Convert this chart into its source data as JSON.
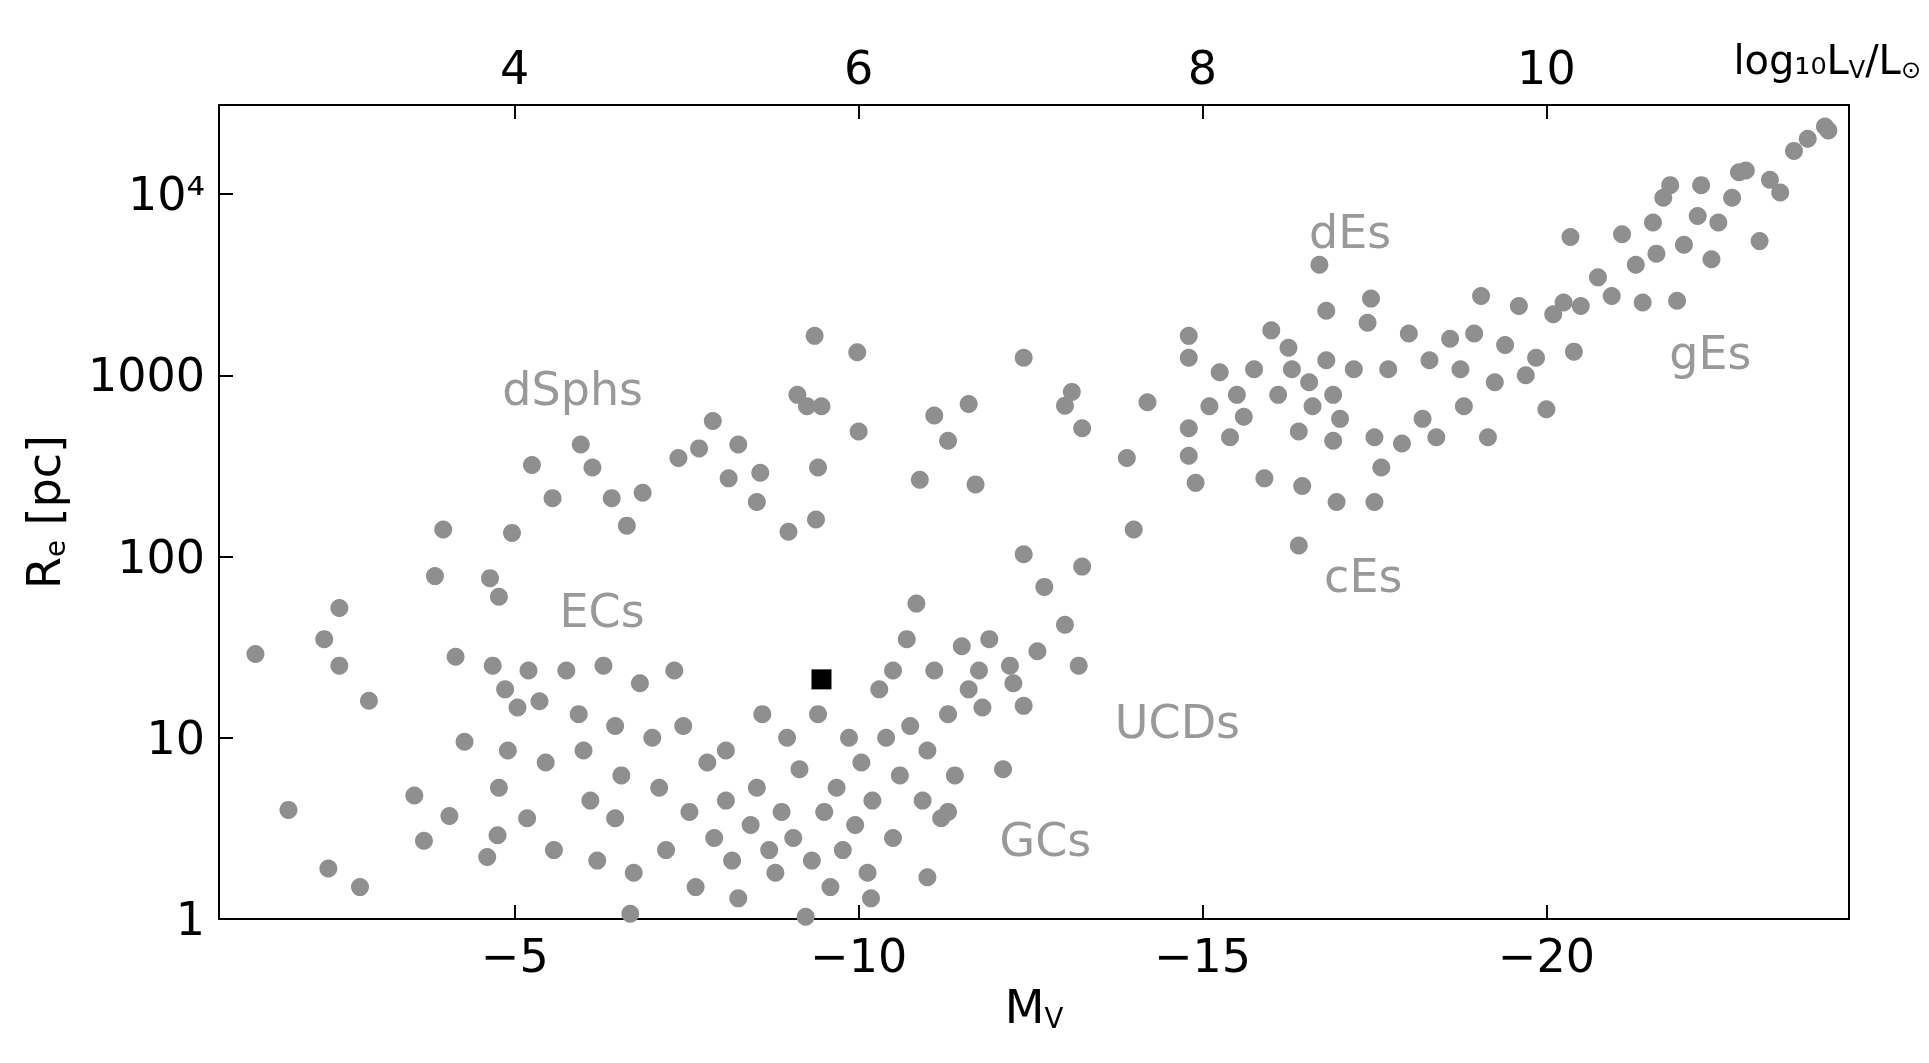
{
  "chart_data": {
    "type": "scatter",
    "xlabel": "M$_{V}$",
    "ylabel": "R$_{e}$ [pc]",
    "x2label": "log₁₀L$_{V}$/L$_{⊙}$",
    "xlim": [
      -0.7,
      -24.4
    ],
    "xticks": [
      -5,
      -10,
      -15,
      -20
    ],
    "x2lim": [
      2.28,
      11.76
    ],
    "x2ticks": [
      4,
      6,
      8,
      10
    ],
    "ylim": [
      1,
      31000
    ],
    "yticks": [
      1,
      10,
      100,
      1000,
      {
        "value": 10000,
        "label": "10⁴"
      }
    ],
    "log": "y",
    "grid": false,
    "marker": "circle",
    "annotations": [
      "dSphs",
      "ECs",
      "GCs",
      "UCDs",
      "dEs",
      "cEs",
      "gEs"
    ],
    "series": [
      {
        "color": "#8f8f8f",
        "x": [
          -1.23,
          -1.71,
          -2.45,
          -2.23,
          -2.45,
          -2.29,
          -2.75,
          -2.88,
          -3.54,
          -3.68,
          -3.84,
          -3.96,
          -4.05,
          -4.14,
          -4.27,
          -4.64,
          -4.77,
          -4.96,
          -5.25,
          -5.55,
          -5.96,
          -6.13,
          -6.41,
          -6.63,
          -6.86,
          -7.38,
          -7.68,
          -7.88,
          -8.11,
          -8.25,
          -8.57,
          -8.52,
          -8.98,
          -9.11,
          -9.25,
          -9.36,
          -9.46,
          -9.41,
          -9.38,
          -9.98,
          -10.0,
          -10.89,
          -11.1,
          -11.3,
          -11.6,
          -11.7,
          -12.4,
          -13.0,
          -13.1,
          -13.25,
          -13.9,
          -14.0,
          -14.2,
          -12.4,
          -12.7,
          -13.25,
          -13.0,
          -13.2,
          -12.4,
          -12.6,
          -14.8,
          -14.8,
          -14.8,
          -14.8,
          -14.9,
          -15.1,
          -15.25,
          -15.4,
          -15.5,
          -15.6,
          -15.75,
          -16.0,
          -15.9,
          -16.1,
          -16.25,
          -16.3,
          -16.4,
          -16.45,
          -16.55,
          -16.6,
          -16.7,
          -16.8,
          -16.9,
          -16.4,
          -16.9,
          -16.95,
          -16.8,
          -17.0,
          -17.2,
          -17.4,
          -17.45,
          -17.5,
          -17.6,
          -17.5,
          -17.7,
          -17.9,
          -18.0,
          -18.2,
          -18.3,
          -18.4,
          -18.6,
          -18.75,
          -18.8,
          -18.95,
          -19.05,
          -19.15,
          -19.25,
          -19.4,
          -19.6,
          -19.7,
          -19.85,
          -20.0,
          -20.1,
          -20.25,
          -20.35,
          -20.4,
          -20.5,
          -20.75,
          -20.95,
          -21.1,
          -21.3,
          -21.4,
          -21.55,
          -21.6,
          -21.7,
          -21.9,
          -22.0,
          -22.2,
          -22.25,
          -22.4,
          -22.5,
          -22.7,
          -22.9,
          -23.1,
          -23.25,
          -23.4,
          -23.6,
          -23.8,
          -24.05,
          -24.1,
          -22.8,
          -21.8,
          -4.68,
          -4.86,
          -5.04,
          -4.9,
          -4.77,
          -4.75,
          -4.6,
          -5.2,
          -5.36,
          -5.45,
          -5.18,
          -5.57,
          -5.75,
          -5.93,
          -6.0,
          -6.1,
          -6.2,
          -6.29,
          -6.46,
          -6.55,
          -6.46,
          -6.68,
          -6.73,
          -6.82,
          -7.0,
          -7.1,
          -7.2,
          -7.32,
          -7.45,
          -7.54,
          -7.63,
          -7.8,
          -7.9,
          -8.07,
          -8.16,
          -8.25,
          -8.43,
          -8.52,
          -8.7,
          -8.79,
          -8.88,
          -9.05,
          -9.14,
          -9.23,
          -9.32,
          -9.41,
          -9.5,
          -9.59,
          -9.68,
          -9.77,
          -9.86,
          -9.95,
          -10.04,
          -10.13,
          -10.2,
          -10.3,
          -10.4,
          -10.5,
          -10.6,
          -10.7,
          -10.75,
          -10.84,
          -10.93,
          -11.0,
          -11.1,
          -11.2,
          -11.3,
          -11.4,
          -11.5,
          -11.6,
          -11.75,
          -11.8,
          -11.9,
          -12.1,
          -12.2,
          -12.25,
          -11.3,
          -11.0,
          -10.18,
          -8.96,
          -8.6,
          -8.07,
          -10.5
        ],
        "values": [
          29,
          4.0,
          52,
          35,
          25,
          1.9,
          1.5,
          16,
          4.8,
          2.7,
          78,
          141,
          3.7,
          28,
          9.5,
          76,
          60,
          135,
          320,
          210,
          415,
          310,
          210,
          148,
          225,
          350,
          395,
          560,
          270,
          415,
          290,
          200,
          137,
          780,
          675,
          1650,
          675,
          310,
          160,
          1340,
          490,
          265,
          600,
          435,
          695,
          250,
          1250,
          680,
          810,
          510,
          350,
          141,
          710,
          103,
          68,
          88,
          42,
          25,
          15,
          30,
          1650,
          1250,
          510,
          360,
          255,
          675,
          1040,
          455,
          780,
          590,
          1080,
          1770,
          270,
          780,
          1420,
          1080,
          490,
          245,
          915,
          675,
          4070,
          1210,
          435,
          115,
          780,
          200,
          2270,
          575,
          1080,
          1950,
          2650,
          455,
          310,
          200,
          1080,
          420,
          1700,
          575,
          1210,
          455,
          1590,
          1080,
          675,
          1700,
          2740,
          455,
          915,
          1470,
          2410,
          1000,
          1250,
          650,
          2170,
          2520,
          5800,
          1350,
          2410,
          3470,
          2740,
          6000,
          4070,
          2520,
          6970,
          4690,
          9540,
          2580,
          5250,
          7560,
          11200,
          4370,
          6970,
          9540,
          13500,
          5500,
          12000,
          10200,
          17300,
          20200,
          23600,
          22400,
          13200,
          11200,
          25,
          18.5,
          14.7,
          8.5,
          5.3,
          2.9,
          2.2,
          23.5,
          15.9,
          7.3,
          3.6,
          2.4,
          23.5,
          13.5,
          8.5,
          4.5,
          2.1,
          25,
          11.6,
          6.2,
          3.6,
          1.07,
          1.8,
          20,
          10,
          5.3,
          2.4,
          23.5,
          11.6,
          3.9,
          1.5,
          7.3,
          2.8,
          4.5,
          2.1,
          1.3,
          3.3,
          5.3,
          2.4,
          1.8,
          3.9,
          2.8,
          6.7,
          1.03,
          2.1,
          13.5,
          3.9,
          1.5,
          5.3,
          2.4,
          10,
          3.3,
          7.3,
          1.8,
          4.5,
          18.5,
          10,
          2.8,
          6.2,
          35,
          11.6,
          55,
          4.5,
          8.5,
          23.5,
          3.6,
          13.5,
          6.2,
          32,
          18.5,
          23.5,
          14.7,
          35,
          6.7,
          25,
          20,
          3.9,
          1.7,
          1.3,
          10,
          13.5,
          8.5,
          23.5
        ]
      },
      {
        "color": "#000000",
        "marker": "square",
        "x": [
          -9.46
        ],
        "values": [
          21
        ]
      }
    ]
  }
}
